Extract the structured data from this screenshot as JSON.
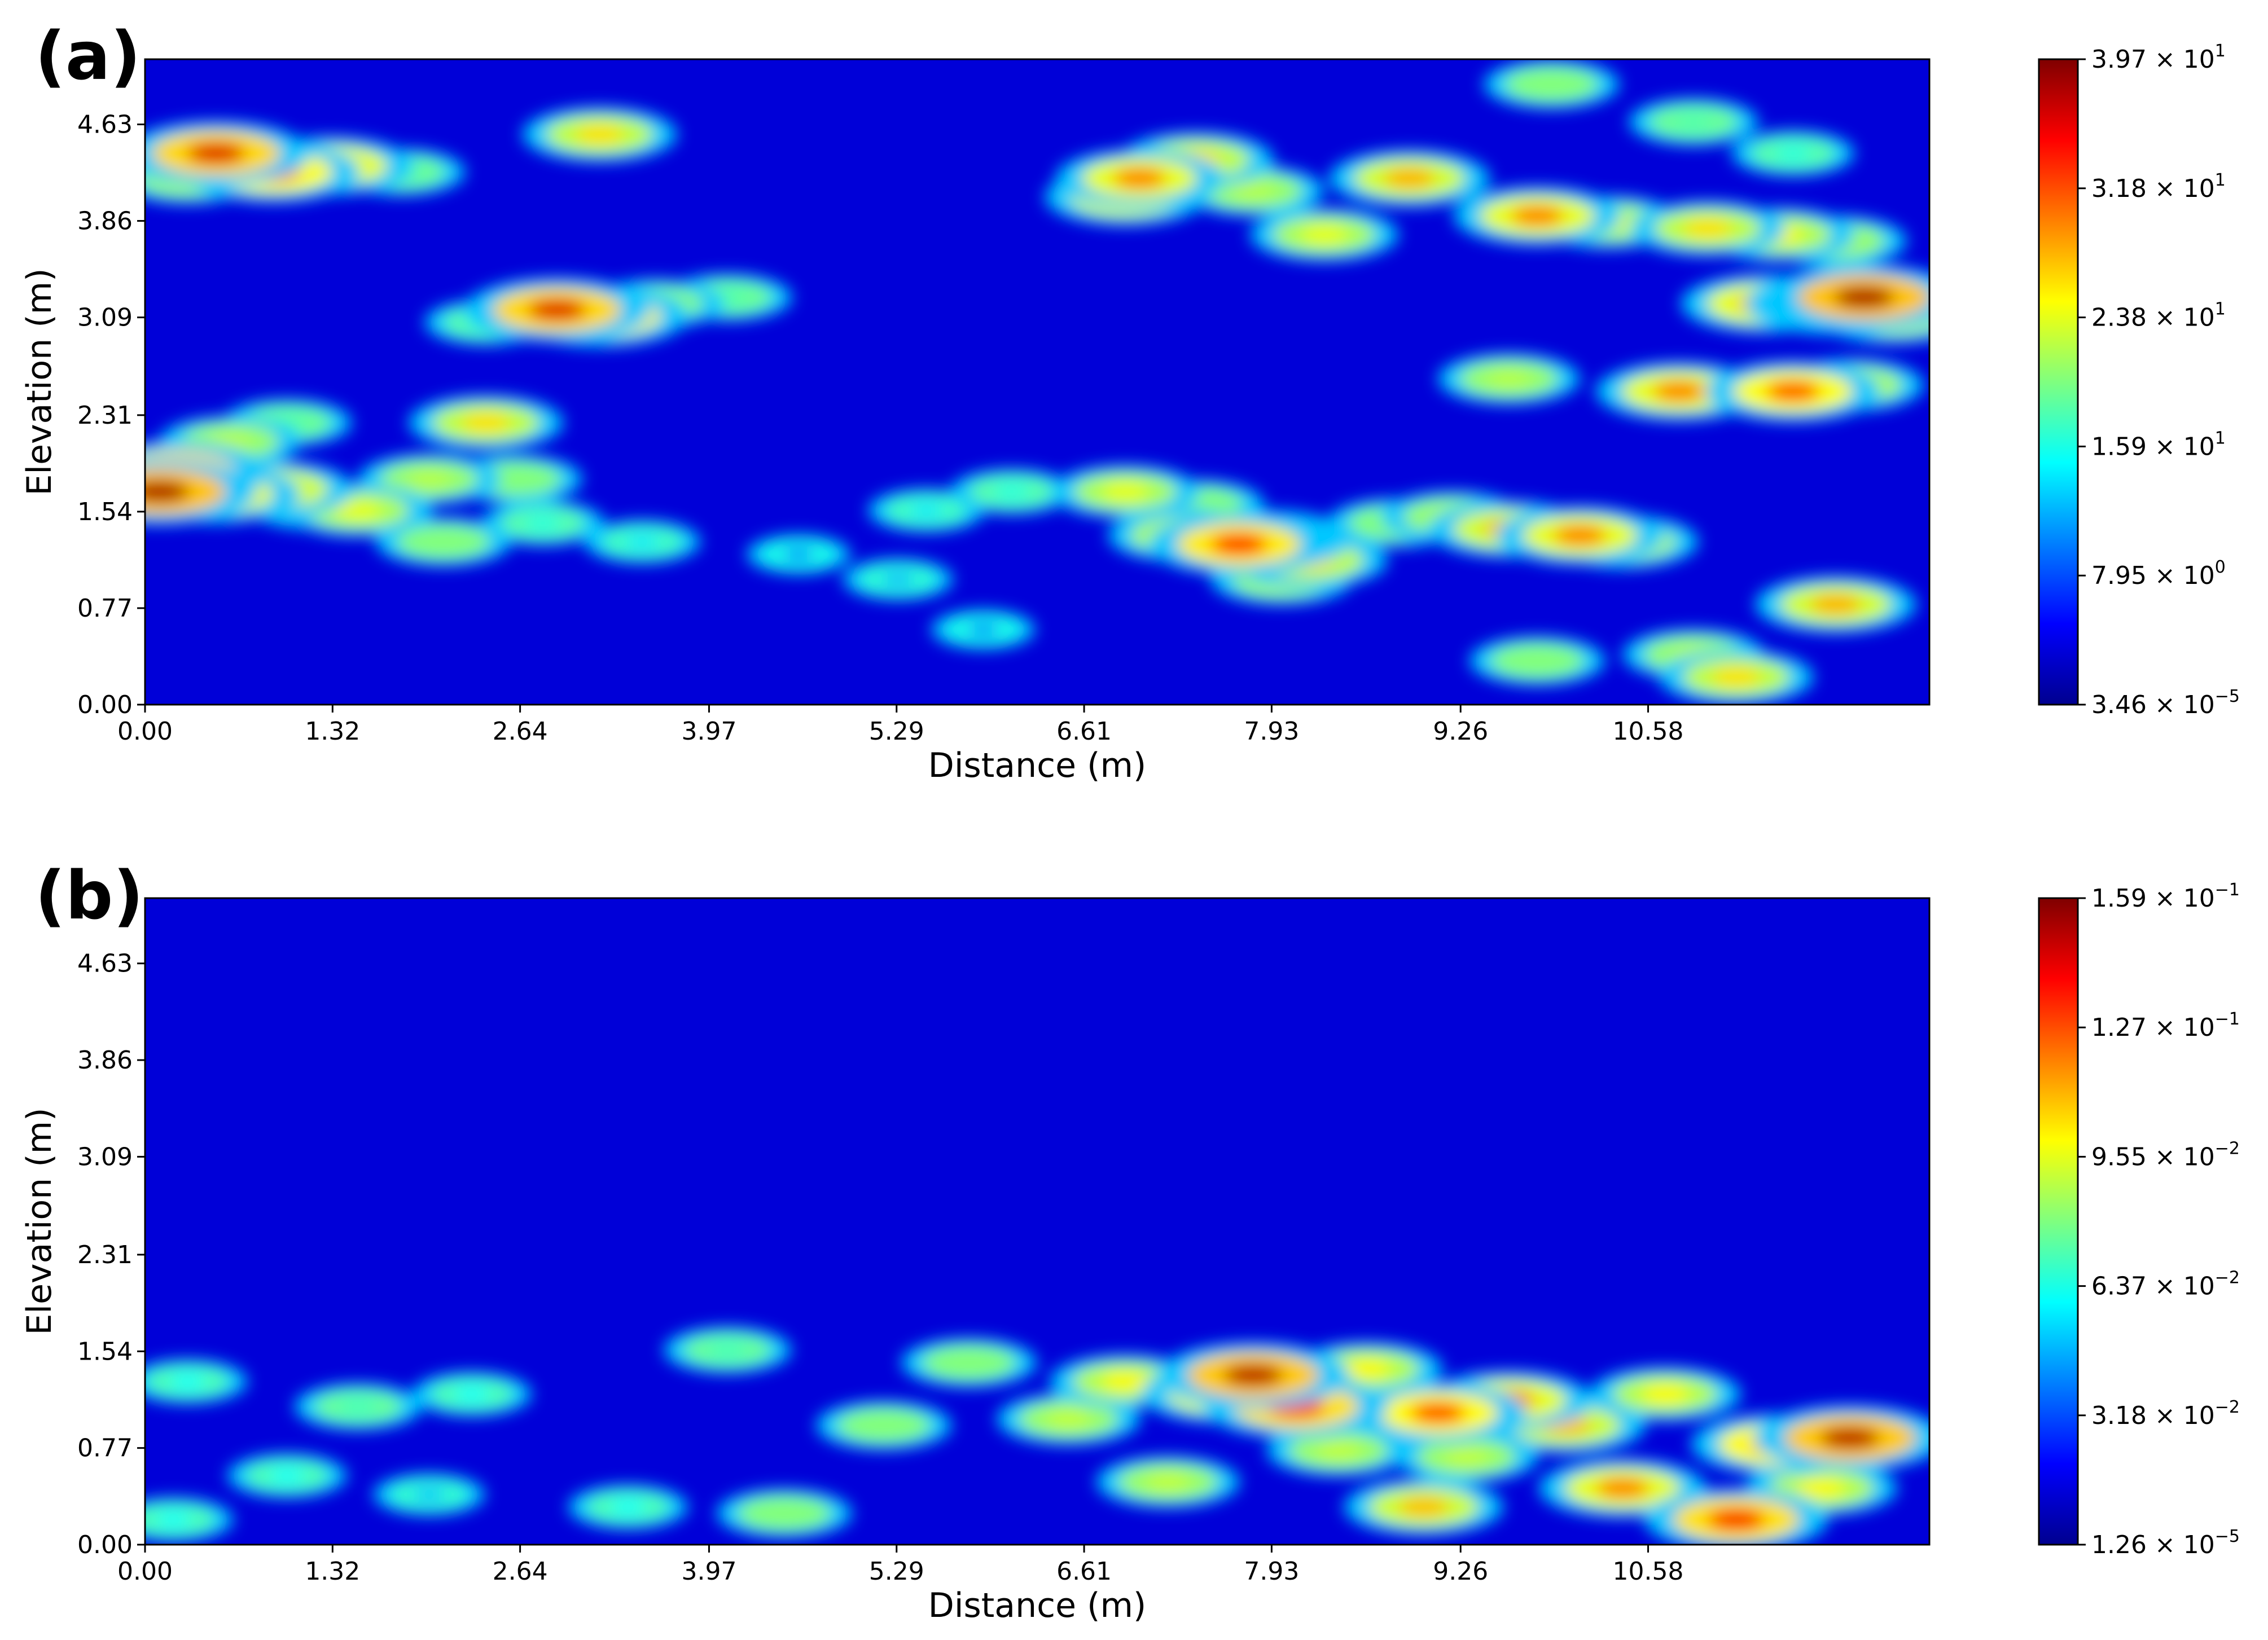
{
  "chart_data": [
    {
      "type": "heatmap",
      "panel_label": "(a)",
      "xlabel": "Distance (m)",
      "ylabel": "Elevation (m)",
      "x_ticks": [
        "0.00",
        "1.32",
        "2.64",
        "3.97",
        "5.29",
        "6.61",
        "7.93",
        "9.26",
        "10.58"
      ],
      "y_ticks": [
        "0.00",
        "0.77",
        "1.54",
        "2.31",
        "3.09",
        "3.86",
        "4.63"
      ],
      "xlim": [
        0.0,
        12.56
      ],
      "ylim": [
        0.0,
        5.15
      ],
      "colormap": "jet",
      "colorbar_ticks": [
        {
          "mantissa": "3.97",
          "exponent": "1"
        },
        {
          "mantissa": "3.18",
          "exponent": "1"
        },
        {
          "mantissa": "2.38",
          "exponent": "1"
        },
        {
          "mantissa": "1.59",
          "exponent": "1"
        },
        {
          "mantissa": "7.95",
          "exponent": "0"
        },
        {
          "mantissa": "3.46",
          "exponent": "−5"
        }
      ],
      "hotspots": [
        {
          "x": 0.1,
          "y": 1.7,
          "v": 38
        },
        {
          "x": 0.2,
          "y": 1.85,
          "v": 35
        },
        {
          "x": 0.5,
          "y": 1.68,
          "v": 30
        },
        {
          "x": 0.9,
          "y": 1.72,
          "v": 28
        },
        {
          "x": 1.2,
          "y": 1.6,
          "v": 22
        },
        {
          "x": 0.6,
          "y": 2.1,
          "v": 22
        },
        {
          "x": 1.0,
          "y": 2.25,
          "v": 18
        },
        {
          "x": 1.5,
          "y": 1.55,
          "v": 24
        },
        {
          "x": 2.0,
          "y": 1.8,
          "v": 22
        },
        {
          "x": 2.6,
          "y": 1.8,
          "v": 20
        },
        {
          "x": 2.4,
          "y": 2.25,
          "v": 26
        },
        {
          "x": 2.1,
          "y": 1.3,
          "v": 20
        },
        {
          "x": 0.5,
          "y": 4.4,
          "v": 36
        },
        {
          "x": 0.9,
          "y": 4.25,
          "v": 32
        },
        {
          "x": 1.3,
          "y": 4.3,
          "v": 30
        },
        {
          "x": 0.3,
          "y": 4.2,
          "v": 22
        },
        {
          "x": 1.8,
          "y": 4.25,
          "v": 18
        },
        {
          "x": 3.2,
          "y": 4.55,
          "v": 26
        },
        {
          "x": 2.9,
          "y": 3.15,
          "v": 36
        },
        {
          "x": 3.2,
          "y": 3.1,
          "v": 33
        },
        {
          "x": 3.6,
          "y": 3.2,
          "v": 20
        },
        {
          "x": 4.1,
          "y": 3.25,
          "v": 18
        },
        {
          "x": 2.4,
          "y": 3.05,
          "v": 16
        },
        {
          "x": 7.0,
          "y": 4.2,
          "v": 30
        },
        {
          "x": 7.4,
          "y": 4.35,
          "v": 26
        },
        {
          "x": 6.9,
          "y": 4.05,
          "v": 28
        },
        {
          "x": 7.8,
          "y": 4.1,
          "v": 22
        },
        {
          "x": 8.9,
          "y": 4.2,
          "v": 28
        },
        {
          "x": 9.8,
          "y": 3.9,
          "v": 30
        },
        {
          "x": 10.3,
          "y": 3.85,
          "v": 24
        },
        {
          "x": 11.0,
          "y": 3.8,
          "v": 26
        },
        {
          "x": 11.5,
          "y": 3.75,
          "v": 25
        },
        {
          "x": 11.9,
          "y": 3.7,
          "v": 22
        },
        {
          "x": 8.3,
          "y": 3.75,
          "v": 24
        },
        {
          "x": 12.1,
          "y": 3.25,
          "v": 38
        },
        {
          "x": 11.9,
          "y": 3.2,
          "v": 34
        },
        {
          "x": 11.4,
          "y": 3.2,
          "v": 30
        },
        {
          "x": 12.3,
          "y": 3.1,
          "v": 26
        },
        {
          "x": 11.6,
          "y": 2.5,
          "v": 32
        },
        {
          "x": 10.8,
          "y": 2.5,
          "v": 30
        },
        {
          "x": 12.0,
          "y": 2.55,
          "v": 24
        },
        {
          "x": 9.6,
          "y": 2.6,
          "v": 22
        },
        {
          "x": 7.7,
          "y": 1.28,
          "v": 34
        },
        {
          "x": 7.9,
          "y": 1.32,
          "v": 30
        },
        {
          "x": 7.3,
          "y": 1.35,
          "v": 24
        },
        {
          "x": 8.2,
          "y": 1.15,
          "v": 26
        },
        {
          "x": 8.0,
          "y": 1.0,
          "v": 22
        },
        {
          "x": 9.6,
          "y": 1.4,
          "v": 28
        },
        {
          "x": 10.1,
          "y": 1.35,
          "v": 30
        },
        {
          "x": 10.4,
          "y": 1.3,
          "v": 25
        },
        {
          "x": 9.2,
          "y": 1.5,
          "v": 22
        },
        {
          "x": 8.8,
          "y": 1.45,
          "v": 20
        },
        {
          "x": 6.9,
          "y": 1.7,
          "v": 24
        },
        {
          "x": 7.4,
          "y": 1.6,
          "v": 20
        },
        {
          "x": 11.9,
          "y": 0.8,
          "v": 28
        },
        {
          "x": 11.2,
          "y": 0.22,
          "v": 26
        },
        {
          "x": 10.9,
          "y": 0.4,
          "v": 22
        },
        {
          "x": 9.8,
          "y": 0.35,
          "v": 20
        },
        {
          "x": 2.8,
          "y": 1.45,
          "v": 16
        },
        {
          "x": 3.5,
          "y": 1.3,
          "v": 14
        },
        {
          "x": 5.5,
          "y": 1.55,
          "v": 14
        },
        {
          "x": 5.3,
          "y": 1.0,
          "v": 12
        },
        {
          "x": 6.1,
          "y": 1.7,
          "v": 16
        },
        {
          "x": 10.9,
          "y": 4.65,
          "v": 18
        },
        {
          "x": 11.6,
          "y": 4.4,
          "v": 16
        },
        {
          "x": 9.9,
          "y": 4.95,
          "v": 20
        },
        {
          "x": 4.6,
          "y": 1.2,
          "v": 10
        },
        {
          "x": 5.9,
          "y": 0.6,
          "v": 10
        }
      ]
    },
    {
      "type": "heatmap",
      "panel_label": "(b)",
      "xlabel": "Distance (m)",
      "ylabel": "Elevation (m)",
      "x_ticks": [
        "0.00",
        "1.32",
        "2.64",
        "3.97",
        "5.29",
        "6.61",
        "7.93",
        "9.26",
        "10.58"
      ],
      "y_ticks": [
        "0.00",
        "0.77",
        "1.54",
        "2.31",
        "3.09",
        "3.86",
        "4.63"
      ],
      "xlim": [
        0.0,
        12.56
      ],
      "ylim": [
        0.0,
        5.15
      ],
      "colormap": "jet",
      "colorbar_ticks": [
        {
          "mantissa": "1.59",
          "exponent": "−1"
        },
        {
          "mantissa": "1.27",
          "exponent": "−1"
        },
        {
          "mantissa": "9.55",
          "exponent": "−2"
        },
        {
          "mantissa": "6.37",
          "exponent": "−2"
        },
        {
          "mantissa": "3.18",
          "exponent": "−2"
        },
        {
          "mantissa": "1.26",
          "exponent": "−5"
        }
      ],
      "hotspots": [
        {
          "x": 7.8,
          "y": 1.35,
          "v": 0.15
        },
        {
          "x": 8.1,
          "y": 1.1,
          "v": 0.14
        },
        {
          "x": 7.6,
          "y": 1.2,
          "v": 0.12
        },
        {
          "x": 9.1,
          "y": 1.05,
          "v": 0.13
        },
        {
          "x": 9.6,
          "y": 1.15,
          "v": 0.12
        },
        {
          "x": 10.0,
          "y": 0.95,
          "v": 0.11
        },
        {
          "x": 11.5,
          "y": 0.8,
          "v": 0.13
        },
        {
          "x": 12.0,
          "y": 0.85,
          "v": 0.15
        },
        {
          "x": 11.2,
          "y": 0.2,
          "v": 0.14
        },
        {
          "x": 10.4,
          "y": 0.45,
          "v": 0.12
        },
        {
          "x": 9.0,
          "y": 0.3,
          "v": 0.11
        },
        {
          "x": 8.6,
          "y": 1.4,
          "v": 0.1
        },
        {
          "x": 6.5,
          "y": 1.0,
          "v": 0.09
        },
        {
          "x": 6.9,
          "y": 1.3,
          "v": 0.1
        },
        {
          "x": 7.2,
          "y": 0.5,
          "v": 0.09
        },
        {
          "x": 5.8,
          "y": 1.45,
          "v": 0.08
        },
        {
          "x": 5.2,
          "y": 0.95,
          "v": 0.08
        },
        {
          "x": 4.5,
          "y": 0.25,
          "v": 0.08
        },
        {
          "x": 4.1,
          "y": 1.55,
          "v": 0.07
        },
        {
          "x": 3.4,
          "y": 0.3,
          "v": 0.06
        },
        {
          "x": 1.5,
          "y": 1.1,
          "v": 0.07
        },
        {
          "x": 1.0,
          "y": 0.55,
          "v": 0.06
        },
        {
          "x": 0.3,
          "y": 1.3,
          "v": 0.06
        },
        {
          "x": 2.3,
          "y": 1.2,
          "v": 0.06
        },
        {
          "x": 0.2,
          "y": 0.2,
          "v": 0.06
        },
        {
          "x": 2.0,
          "y": 0.4,
          "v": 0.05
        },
        {
          "x": 10.7,
          "y": 1.2,
          "v": 0.1
        },
        {
          "x": 9.3,
          "y": 0.7,
          "v": 0.09
        },
        {
          "x": 11.8,
          "y": 0.45,
          "v": 0.1
        },
        {
          "x": 8.4,
          "y": 0.75,
          "v": 0.09
        }
      ]
    }
  ]
}
